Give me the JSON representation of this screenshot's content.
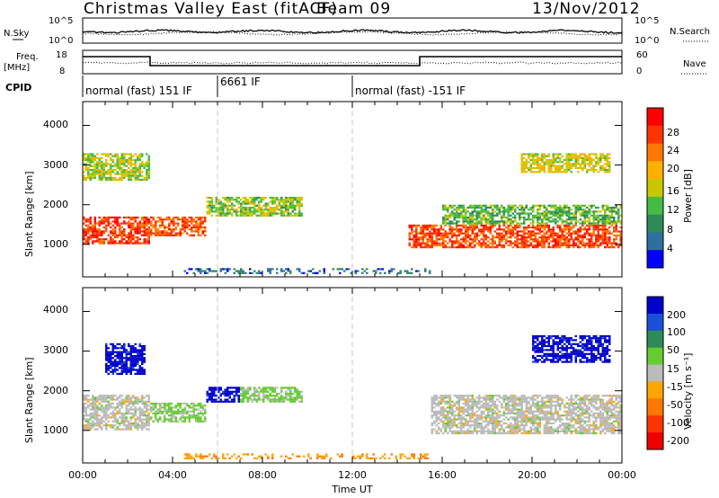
{
  "header": {
    "title": "Christmas Valley East (fitACF)",
    "beam": "Beam 09",
    "date": "13/Nov/2012"
  },
  "noise_panel": {
    "left_label": "N.Sky",
    "right_label": "N.Search",
    "left_ticks": [
      "10^5",
      "10^0"
    ],
    "right_ticks": [
      "10^5",
      "10^0"
    ]
  },
  "freq_panel": {
    "left_label_line1": "Freq.",
    "left_label_line2": "[MHz]",
    "left_ticks": [
      "18",
      "8"
    ],
    "right_ticks": [
      "60",
      "0"
    ],
    "right_label": "Nave"
  },
  "cpid": {
    "label": "CPID",
    "segments": [
      {
        "text": "normal (fast) 151 IF",
        "start_hour": 0
      },
      {
        "text": "6661 IF",
        "start_hour": 6
      },
      {
        "text": "normal (fast) -151 IF",
        "start_hour": 12
      }
    ]
  },
  "x_axis": {
    "label": "Time UT",
    "ticks": [
      "00:00",
      "04:00",
      "08:00",
      "12:00",
      "16:00",
      "20:00",
      "00:00"
    ],
    "range_hours": [
      0,
      24
    ]
  },
  "power_panel": {
    "ylabel": "Slant Range [km]",
    "yticks": [
      "4000",
      "3000",
      "2000",
      "1000"
    ],
    "colorbar_label": "Power [dB]",
    "colorbar_ticks": [
      "28",
      "24",
      "20",
      "16",
      "12",
      "8",
      "4"
    ],
    "colors": [
      "#ff0000",
      "#ff3300",
      "#ff7700",
      "#ffb000",
      "#c8c800",
      "#44bb44",
      "#2e8b57",
      "#2f6f9f",
      "#0000ff"
    ]
  },
  "velocity_panel": {
    "ylabel": "Slant Range [km]",
    "yticks": [
      "4000",
      "3000",
      "2000",
      "1000"
    ],
    "colorbar_label": "Velocity [m s⁻¹]",
    "colorbar_ticks": [
      "200",
      "100",
      "50",
      "15",
      "-15",
      "-50",
      "-100",
      "-200"
    ],
    "colors": [
      "#0000cc",
      "#1a4fd6",
      "#2e8b57",
      "#66cc33",
      "#bbbbbb",
      "#ffa500",
      "#ff7700",
      "#ff3300",
      "#ee0000"
    ]
  },
  "chart_data": [
    {
      "type": "heatmap",
      "quantity": "Power [dB]",
      "xlabel": "Time UT",
      "ylabel": "Slant Range [km]",
      "xlim_hours": [
        0,
        24
      ],
      "ylim_km": [
        180,
        4600
      ],
      "colorbar_range": [
        0,
        32
      ],
      "echo_regions": [
        {
          "t": [
            0.0,
            3.0
          ],
          "range_km": [
            1000,
            1700
          ],
          "power_db": 28
        },
        {
          "t": [
            0.0,
            3.0
          ],
          "range_km": [
            2600,
            3300
          ],
          "power_db": 15
        },
        {
          "t": [
            3.0,
            5.5
          ],
          "range_km": [
            1200,
            1700
          ],
          "power_db": 26
        },
        {
          "t": [
            5.5,
            9.8
          ],
          "range_km": [
            1700,
            2200
          ],
          "power_db": 14
        },
        {
          "t": [
            14.5,
            24.0
          ],
          "range_km": [
            900,
            1500
          ],
          "power_db": 27
        },
        {
          "t": [
            16.0,
            24.0
          ],
          "range_km": [
            1500,
            2000
          ],
          "power_db": 12
        },
        {
          "t": [
            19.5,
            23.5
          ],
          "range_km": [
            2800,
            3300
          ],
          "power_db": 17
        },
        {
          "t": [
            4.5,
            15.5
          ],
          "range_km": [
            230,
            400
          ],
          "power_db": 5
        }
      ]
    },
    {
      "type": "heatmap",
      "quantity": "Velocity [m s-1]",
      "xlabel": "Time UT",
      "ylabel": "Slant Range [km]",
      "xlim_hours": [
        0,
        24
      ],
      "ylim_km": [
        180,
        4600
      ],
      "colorbar_range": [
        -200,
        200
      ],
      "echo_regions": [
        {
          "t": [
            0.0,
            3.0
          ],
          "range_km": [
            1000,
            1900
          ],
          "velocity": 0
        },
        {
          "t": [
            1.0,
            2.8
          ],
          "range_km": [
            2400,
            3200
          ],
          "velocity": 200
        },
        {
          "t": [
            3.0,
            5.5
          ],
          "range_km": [
            1200,
            1700
          ],
          "velocity": 40
        },
        {
          "t": [
            5.5,
            7.0
          ],
          "range_km": [
            1700,
            2100
          ],
          "velocity": 200
        },
        {
          "t": [
            7.0,
            9.8
          ],
          "range_km": [
            1700,
            2100
          ],
          "velocity": 40
        },
        {
          "t": [
            15.5,
            24.0
          ],
          "range_km": [
            900,
            1900
          ],
          "velocity": 0
        },
        {
          "t": [
            20.0,
            23.5
          ],
          "range_km": [
            2700,
            3400
          ],
          "velocity": 200
        },
        {
          "t": [
            4.5,
            15.5
          ],
          "range_km": [
            230,
            420
          ],
          "velocity": -60
        }
      ]
    }
  ]
}
